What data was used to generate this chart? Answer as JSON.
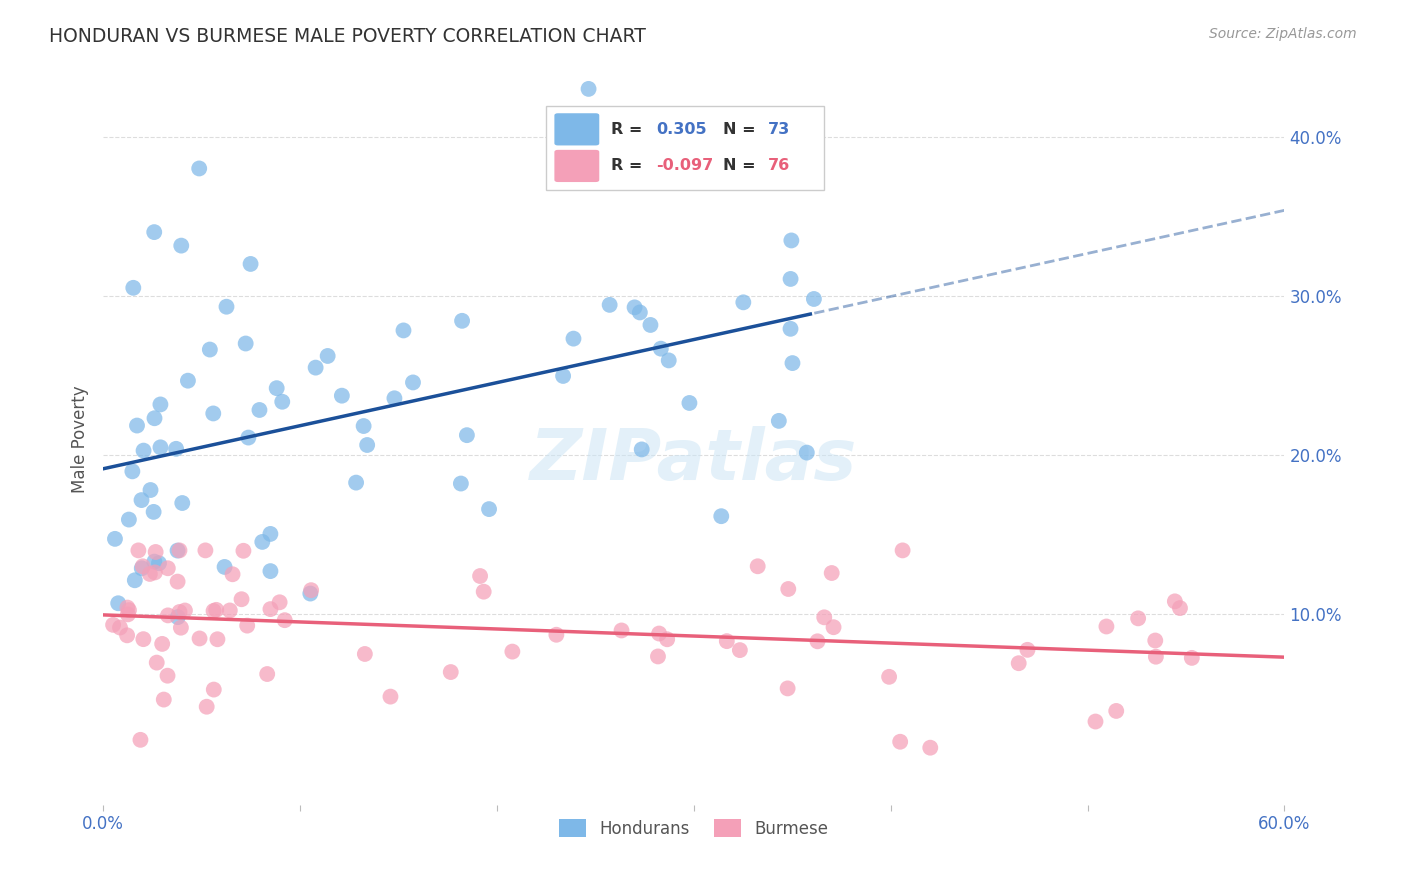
{
  "title": "HONDURAN VS BURMESE MALE POVERTY CORRELATION CHART",
  "source": "Source: ZipAtlas.com",
  "ylabel": "Male Poverty",
  "xlim": [
    0.0,
    0.6
  ],
  "ylim": [
    -0.02,
    0.44
  ],
  "xticks": [
    0.0,
    0.1,
    0.2,
    0.3,
    0.4,
    0.5,
    0.6
  ],
  "xticklabels": [
    "0.0%",
    "",
    "",
    "",
    "",
    "",
    "60.0%"
  ],
  "yticks_right": [
    0.1,
    0.2,
    0.3,
    0.4
  ],
  "yticklabels_right": [
    "10.0%",
    "20.0%",
    "30.0%",
    "40.0%"
  ],
  "honduran_color": "#7EB8E8",
  "burmese_color": "#F4A0B8",
  "honduran_line_color": "#1B5099",
  "burmese_line_color": "#E8607A",
  "honduran_R": 0.305,
  "honduran_N": 73,
  "burmese_R": -0.097,
  "burmese_N": 76,
  "legend_hondurans": "Hondurans",
  "legend_burmese": "Burmese",
  "watermark_text": "ZIPatlas",
  "background_color": "#ffffff",
  "grid_color": "#dddddd",
  "title_color": "#333333",
  "axis_label_color": "#555555",
  "right_tick_color": "#4472C4",
  "legend_box_color": "#cccccc",
  "seed": 42
}
